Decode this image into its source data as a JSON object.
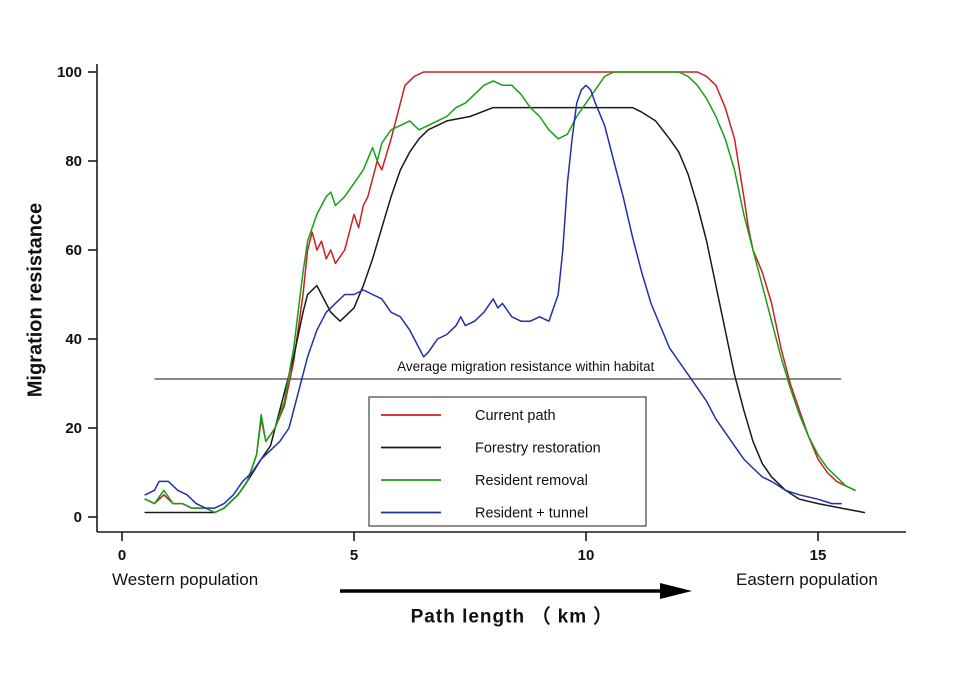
{
  "figure": {
    "y_axis_title": "Migration resistance",
    "x_axis_title": "Path length （ km ）",
    "left_label": "Western population",
    "right_label": "Eastern population"
  },
  "chart_data": {
    "type": "line",
    "title": "",
    "xlabel": "Path length (km)",
    "ylabel": "Migration resistance",
    "xlim": [
      0,
      16.5
    ],
    "ylim": [
      0,
      100
    ],
    "x_ticks": [
      0,
      5,
      10,
      15
    ],
    "y_ticks": [
      0,
      20,
      40,
      60,
      80,
      100
    ],
    "grid": false,
    "legend_position": "inside lower-center",
    "axis_color": "#1a1a1a",
    "annotation": {
      "text": "Average migration resistance within habitat",
      "x": 8.7,
      "y": 31
    },
    "reference_line": {
      "y": 31,
      "x_start": 0.7,
      "x_end": 15.5,
      "color": "#8a8a8a"
    },
    "series": [
      {
        "name": "Current path",
        "color": "#cc2020",
        "points": [
          [
            0.5,
            4
          ],
          [
            0.7,
            3
          ],
          [
            0.9,
            5
          ],
          [
            1.1,
            3
          ],
          [
            1.3,
            3
          ],
          [
            1.5,
            2
          ],
          [
            1.8,
            2
          ],
          [
            2.0,
            1
          ],
          [
            2.2,
            2
          ],
          [
            2.5,
            5
          ],
          [
            2.7,
            8
          ],
          [
            2.9,
            14
          ],
          [
            3.0,
            22
          ],
          [
            3.1,
            17
          ],
          [
            3.3,
            20
          ],
          [
            3.5,
            25
          ],
          [
            3.7,
            35
          ],
          [
            3.9,
            50
          ],
          [
            4.0,
            60
          ],
          [
            4.1,
            64
          ],
          [
            4.2,
            60
          ],
          [
            4.3,
            62
          ],
          [
            4.4,
            58
          ],
          [
            4.5,
            60
          ],
          [
            4.6,
            57
          ],
          [
            4.8,
            60
          ],
          [
            5.0,
            68
          ],
          [
            5.1,
            65
          ],
          [
            5.2,
            70
          ],
          [
            5.3,
            72
          ],
          [
            5.5,
            80
          ],
          [
            5.6,
            78
          ],
          [
            5.8,
            85
          ],
          [
            6.0,
            93
          ],
          [
            6.1,
            97
          ],
          [
            6.3,
            99
          ],
          [
            6.5,
            100
          ],
          [
            7.0,
            100
          ],
          [
            8.0,
            100
          ],
          [
            9.0,
            100
          ],
          [
            10.0,
            100
          ],
          [
            11.0,
            100
          ],
          [
            12.0,
            100
          ],
          [
            12.4,
            100
          ],
          [
            12.6,
            99
          ],
          [
            12.8,
            97
          ],
          [
            13.0,
            92
          ],
          [
            13.2,
            85
          ],
          [
            13.4,
            72
          ],
          [
            13.5,
            65
          ],
          [
            13.6,
            60
          ],
          [
            13.8,
            55
          ],
          [
            14.0,
            48
          ],
          [
            14.2,
            38
          ],
          [
            14.4,
            30
          ],
          [
            14.6,
            24
          ],
          [
            14.8,
            18
          ],
          [
            15.0,
            13
          ],
          [
            15.2,
            10
          ],
          [
            15.4,
            8
          ],
          [
            15.6,
            7
          ],
          [
            15.8,
            6
          ]
        ]
      },
      {
        "name": "Forestry restoration",
        "color": "#1a1a1a",
        "points": [
          [
            0.5,
            1
          ],
          [
            1.0,
            1
          ],
          [
            1.5,
            1
          ],
          [
            2.0,
            1
          ],
          [
            2.2,
            2
          ],
          [
            2.5,
            5
          ],
          [
            2.7,
            8
          ],
          [
            3.0,
            13
          ],
          [
            3.2,
            16
          ],
          [
            3.5,
            28
          ],
          [
            3.7,
            36
          ],
          [
            3.9,
            46
          ],
          [
            4.0,
            50
          ],
          [
            4.2,
            52
          ],
          [
            4.3,
            50
          ],
          [
            4.5,
            46
          ],
          [
            4.7,
            44
          ],
          [
            4.9,
            46
          ],
          [
            5.0,
            47
          ],
          [
            5.2,
            52
          ],
          [
            5.4,
            58
          ],
          [
            5.6,
            65
          ],
          [
            5.8,
            72
          ],
          [
            6.0,
            78
          ],
          [
            6.2,
            82
          ],
          [
            6.4,
            85
          ],
          [
            6.6,
            87
          ],
          [
            6.8,
            88
          ],
          [
            7.0,
            89
          ],
          [
            7.5,
            90
          ],
          [
            8.0,
            92
          ],
          [
            8.5,
            92
          ],
          [
            9.0,
            92
          ],
          [
            9.5,
            92
          ],
          [
            10.0,
            92
          ],
          [
            10.5,
            92
          ],
          [
            11.0,
            92
          ],
          [
            11.2,
            91
          ],
          [
            11.5,
            89
          ],
          [
            11.8,
            85
          ],
          [
            12.0,
            82
          ],
          [
            12.2,
            77
          ],
          [
            12.4,
            70
          ],
          [
            12.6,
            62
          ],
          [
            12.8,
            52
          ],
          [
            13.0,
            42
          ],
          [
            13.2,
            32
          ],
          [
            13.4,
            24
          ],
          [
            13.6,
            17
          ],
          [
            13.8,
            12
          ],
          [
            14.0,
            9
          ],
          [
            14.3,
            6
          ],
          [
            14.6,
            4
          ],
          [
            15.0,
            3
          ],
          [
            15.5,
            2
          ],
          [
            16.0,
            1
          ]
        ]
      },
      {
        "name": "Resident removal",
        "color": "#17a017",
        "points": [
          [
            0.5,
            4
          ],
          [
            0.7,
            3
          ],
          [
            0.9,
            6
          ],
          [
            1.1,
            3
          ],
          [
            1.3,
            3
          ],
          [
            1.5,
            2
          ],
          [
            1.8,
            2
          ],
          [
            2.0,
            1
          ],
          [
            2.2,
            2
          ],
          [
            2.5,
            5
          ],
          [
            2.7,
            8
          ],
          [
            2.9,
            14
          ],
          [
            3.0,
            23
          ],
          [
            3.1,
            17
          ],
          [
            3.3,
            20
          ],
          [
            3.5,
            26
          ],
          [
            3.7,
            38
          ],
          [
            3.9,
            55
          ],
          [
            4.0,
            62
          ],
          [
            4.1,
            65
          ],
          [
            4.2,
            68
          ],
          [
            4.3,
            70
          ],
          [
            4.4,
            72
          ],
          [
            4.5,
            73
          ],
          [
            4.6,
            70
          ],
          [
            4.8,
            72
          ],
          [
            5.0,
            75
          ],
          [
            5.2,
            78
          ],
          [
            5.4,
            83
          ],
          [
            5.5,
            80
          ],
          [
            5.6,
            84
          ],
          [
            5.8,
            87
          ],
          [
            6.0,
            88
          ],
          [
            6.2,
            89
          ],
          [
            6.4,
            87
          ],
          [
            6.6,
            88
          ],
          [
            6.8,
            89
          ],
          [
            7.0,
            90
          ],
          [
            7.2,
            92
          ],
          [
            7.4,
            93
          ],
          [
            7.6,
            95
          ],
          [
            7.8,
            97
          ],
          [
            8.0,
            98
          ],
          [
            8.2,
            97
          ],
          [
            8.4,
            97
          ],
          [
            8.6,
            95
          ],
          [
            8.8,
            92
          ],
          [
            9.0,
            90
          ],
          [
            9.2,
            87
          ],
          [
            9.4,
            85
          ],
          [
            9.6,
            86
          ],
          [
            9.8,
            90
          ],
          [
            10.0,
            93
          ],
          [
            10.2,
            96
          ],
          [
            10.4,
            99
          ],
          [
            10.6,
            100
          ],
          [
            11.0,
            100
          ],
          [
            11.5,
            100
          ],
          [
            12.0,
            100
          ],
          [
            12.2,
            99
          ],
          [
            12.4,
            97
          ],
          [
            12.6,
            94
          ],
          [
            12.8,
            90
          ],
          [
            13.0,
            85
          ],
          [
            13.2,
            78
          ],
          [
            13.4,
            68
          ],
          [
            13.6,
            60
          ],
          [
            13.8,
            52
          ],
          [
            14.0,
            44
          ],
          [
            14.2,
            36
          ],
          [
            14.4,
            29
          ],
          [
            14.6,
            23
          ],
          [
            14.8,
            18
          ],
          [
            15.0,
            14
          ],
          [
            15.2,
            11
          ],
          [
            15.4,
            9
          ],
          [
            15.6,
            7
          ],
          [
            15.8,
            6
          ]
        ]
      },
      {
        "name": "Resident + tunnel",
        "color": "#2330a8",
        "points": [
          [
            0.5,
            5
          ],
          [
            0.7,
            6
          ],
          [
            0.8,
            8
          ],
          [
            1.0,
            8
          ],
          [
            1.2,
            6
          ],
          [
            1.4,
            5
          ],
          [
            1.6,
            3
          ],
          [
            1.8,
            2
          ],
          [
            2.0,
            2
          ],
          [
            2.2,
            3
          ],
          [
            2.4,
            5
          ],
          [
            2.6,
            8
          ],
          [
            2.8,
            10
          ],
          [
            3.0,
            13
          ],
          [
            3.2,
            15
          ],
          [
            3.4,
            17
          ],
          [
            3.6,
            20
          ],
          [
            3.8,
            28
          ],
          [
            4.0,
            36
          ],
          [
            4.2,
            42
          ],
          [
            4.4,
            46
          ],
          [
            4.6,
            48
          ],
          [
            4.8,
            50
          ],
          [
            5.0,
            50
          ],
          [
            5.2,
            51
          ],
          [
            5.4,
            50
          ],
          [
            5.6,
            49
          ],
          [
            5.8,
            46
          ],
          [
            6.0,
            45
          ],
          [
            6.2,
            42
          ],
          [
            6.4,
            38
          ],
          [
            6.5,
            36
          ],
          [
            6.6,
            37
          ],
          [
            6.8,
            40
          ],
          [
            7.0,
            41
          ],
          [
            7.2,
            43
          ],
          [
            7.3,
            45
          ],
          [
            7.4,
            43
          ],
          [
            7.6,
            44
          ],
          [
            7.8,
            46
          ],
          [
            8.0,
            49
          ],
          [
            8.1,
            47
          ],
          [
            8.2,
            48
          ],
          [
            8.4,
            45
          ],
          [
            8.6,
            44
          ],
          [
            8.8,
            44
          ],
          [
            9.0,
            45
          ],
          [
            9.2,
            44
          ],
          [
            9.4,
            50
          ],
          [
            9.5,
            60
          ],
          [
            9.6,
            75
          ],
          [
            9.7,
            85
          ],
          [
            9.8,
            93
          ],
          [
            9.9,
            96
          ],
          [
            10.0,
            97
          ],
          [
            10.1,
            96
          ],
          [
            10.2,
            93
          ],
          [
            10.4,
            88
          ],
          [
            10.6,
            80
          ],
          [
            10.8,
            72
          ],
          [
            11.0,
            63
          ],
          [
            11.2,
            55
          ],
          [
            11.4,
            48
          ],
          [
            11.6,
            43
          ],
          [
            11.8,
            38
          ],
          [
            12.0,
            35
          ],
          [
            12.2,
            32
          ],
          [
            12.4,
            29
          ],
          [
            12.6,
            26
          ],
          [
            12.8,
            22
          ],
          [
            13.0,
            19
          ],
          [
            13.2,
            16
          ],
          [
            13.4,
            13
          ],
          [
            13.6,
            11
          ],
          [
            13.8,
            9
          ],
          [
            14.0,
            8
          ],
          [
            14.3,
            6
          ],
          [
            14.6,
            5
          ],
          [
            15.0,
            4
          ],
          [
            15.3,
            3
          ],
          [
            15.5,
            3
          ]
        ]
      }
    ]
  }
}
